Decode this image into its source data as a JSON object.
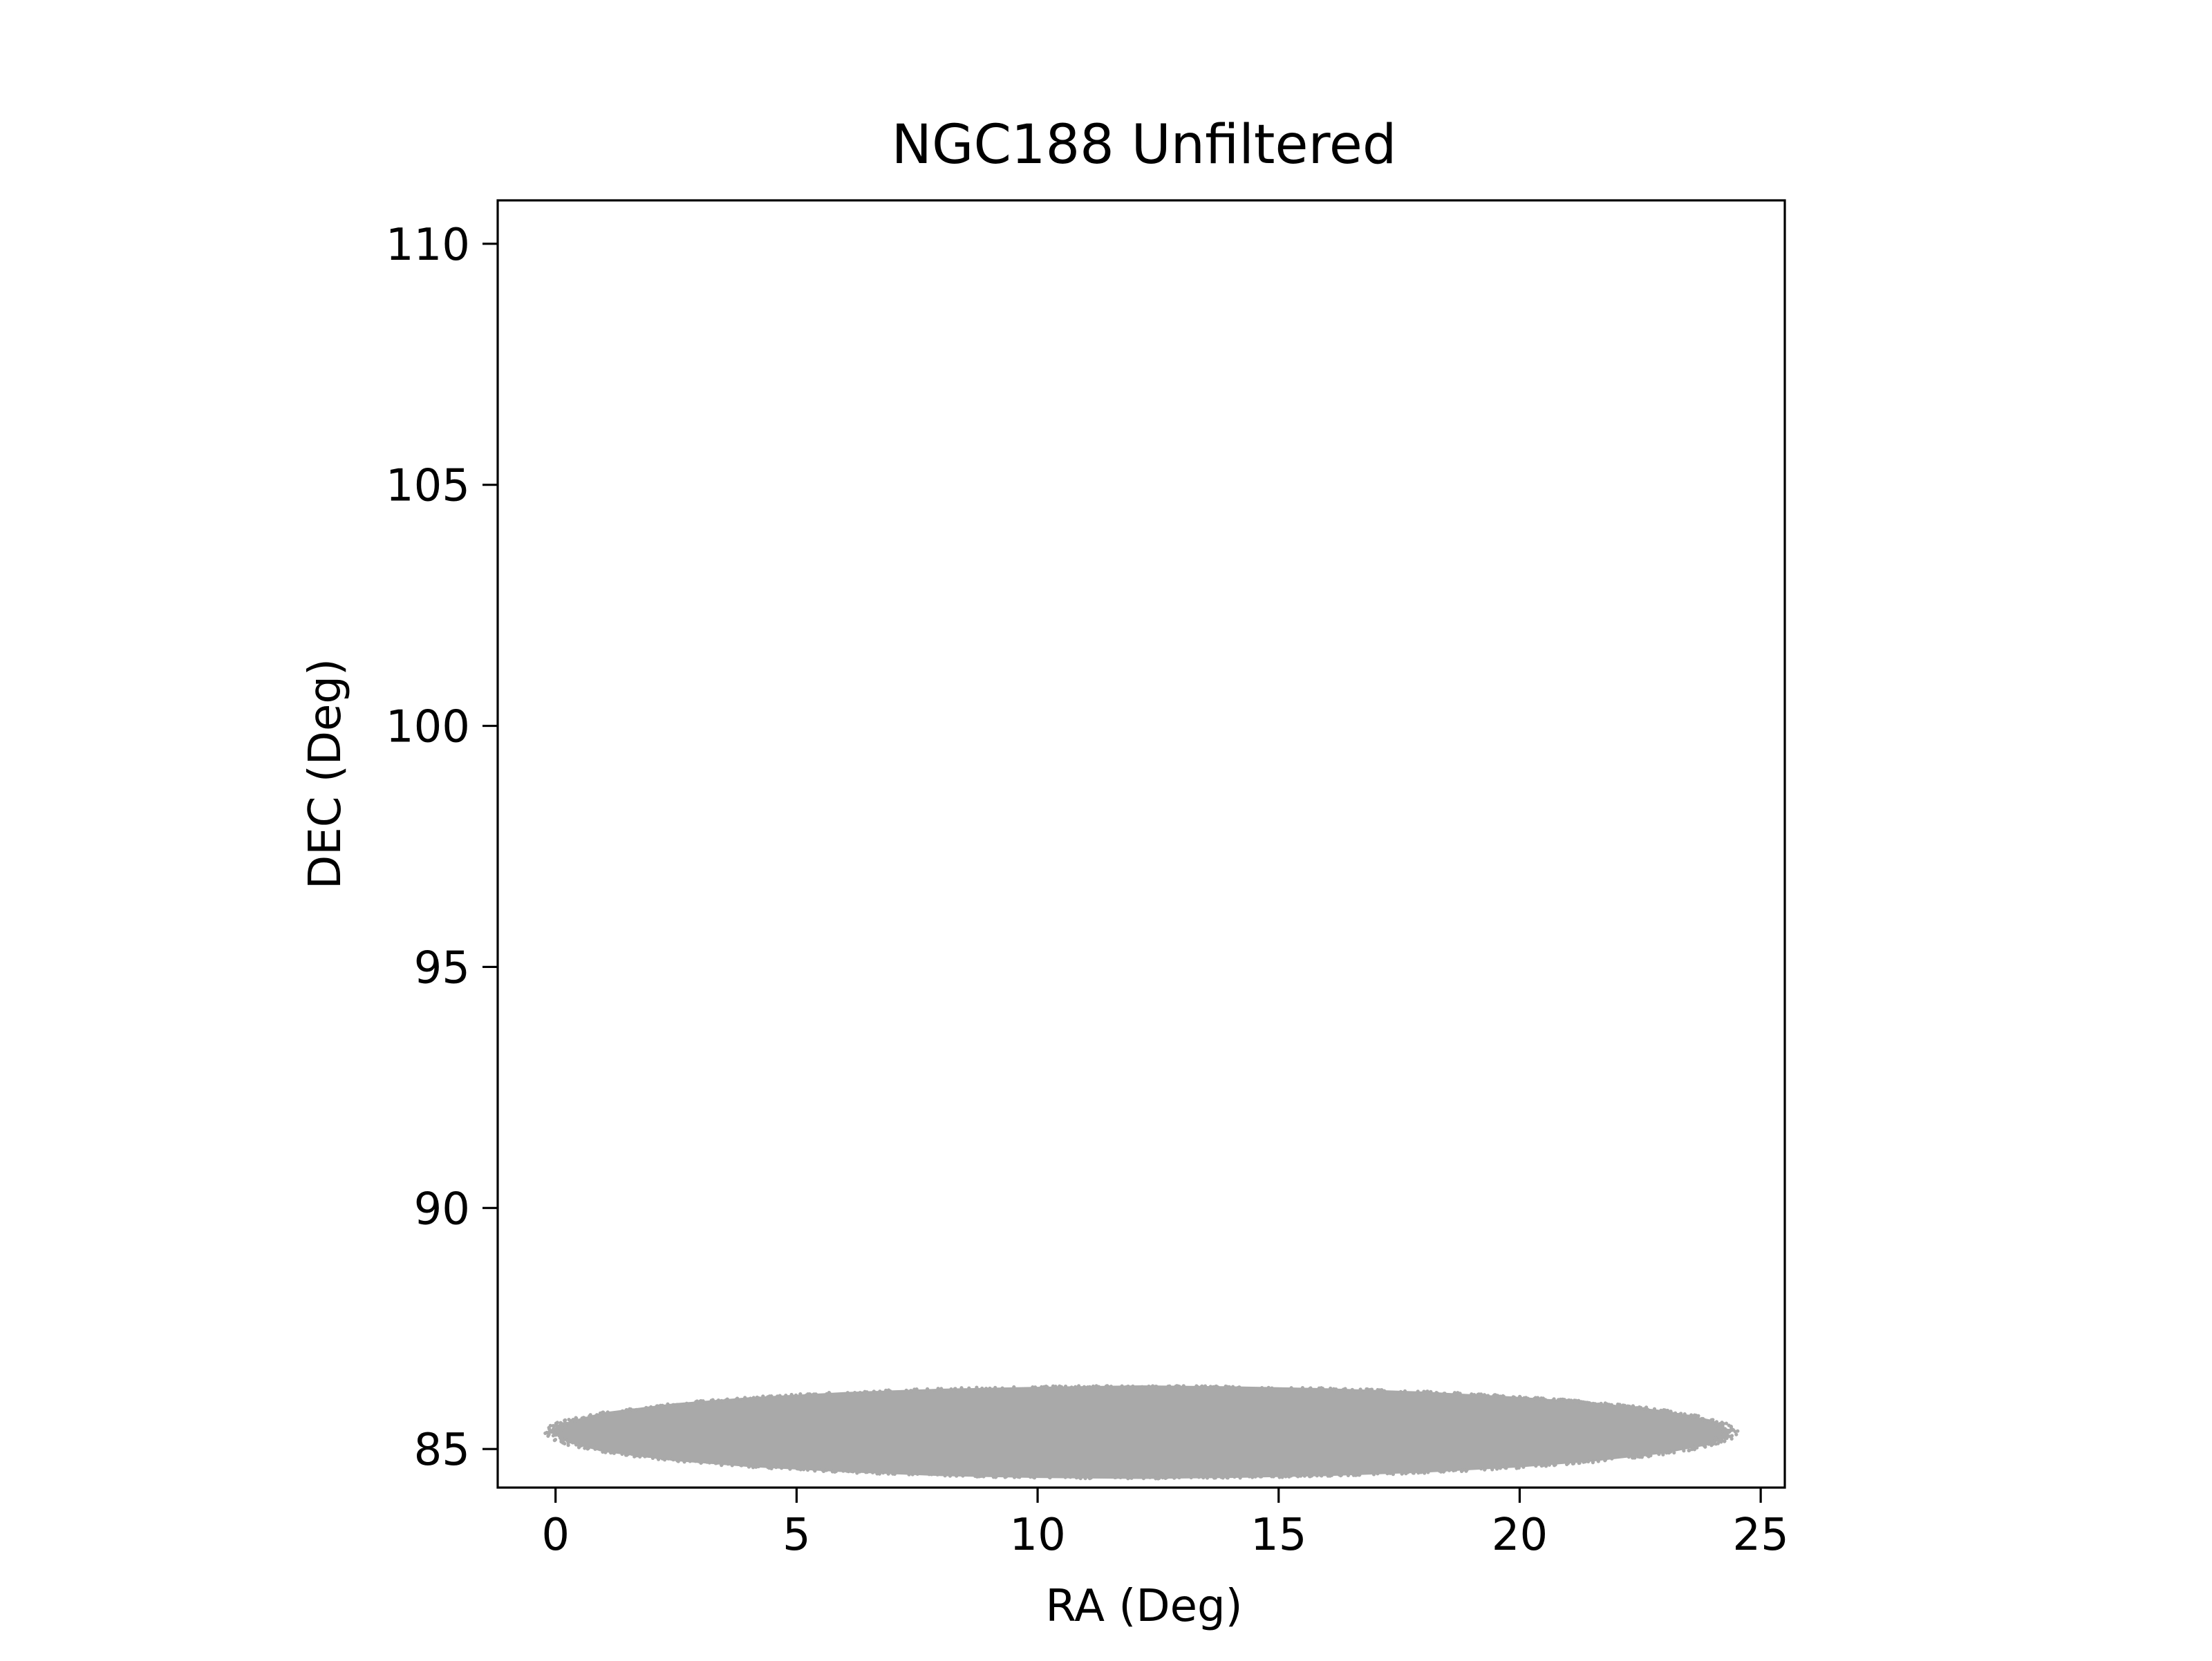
{
  "chart_data": {
    "type": "scatter",
    "title": "NGC188 Unfiltered",
    "xlabel": "RA (Deg)",
    "ylabel": "DEC (Deg)",
    "xlim": [
      -1.2,
      25.5
    ],
    "ylim": [
      84.2,
      110.9
    ],
    "xticks": [
      0,
      5,
      10,
      15,
      20,
      25
    ],
    "yticks": [
      85,
      90,
      95,
      100,
      105,
      110
    ],
    "grid": false,
    "legend": "none",
    "series": [
      {
        "marker_color": "#a9a9a9",
        "distribution": {
          "shape": "ellipse",
          "ra_center": 12.15,
          "ra_halfwidth": 12.2,
          "dec_center": 85.35,
          "dec_halfheight": 0.95
        },
        "boundary_points": [
          [
            -0.05,
            85.35
          ],
          [
            0.3,
            85.56
          ],
          [
            1.0,
            85.74
          ],
          [
            2.5,
            85.93
          ],
          [
            4.0,
            86.05
          ],
          [
            6.0,
            86.16
          ],
          [
            8.0,
            86.23
          ],
          [
            10.0,
            86.27
          ],
          [
            12.15,
            86.3
          ],
          [
            14.0,
            86.28
          ],
          [
            16.0,
            86.24
          ],
          [
            18.0,
            86.17
          ],
          [
            20.0,
            86.06
          ],
          [
            21.5,
            85.95
          ],
          [
            23.0,
            85.78
          ],
          [
            24.0,
            85.58
          ],
          [
            24.35,
            85.35
          ],
          [
            24.0,
            85.12
          ],
          [
            23.0,
            84.93
          ],
          [
            21.5,
            84.76
          ],
          [
            20.0,
            84.64
          ],
          [
            18.0,
            84.53
          ],
          [
            16.0,
            84.46
          ],
          [
            14.0,
            84.42
          ],
          [
            12.15,
            84.4
          ],
          [
            10.0,
            84.42
          ],
          [
            8.0,
            84.46
          ],
          [
            6.0,
            84.54
          ],
          [
            4.0,
            84.65
          ],
          [
            2.5,
            84.77
          ],
          [
            1.0,
            84.96
          ],
          [
            0.3,
            85.14
          ]
        ]
      }
    ]
  }
}
